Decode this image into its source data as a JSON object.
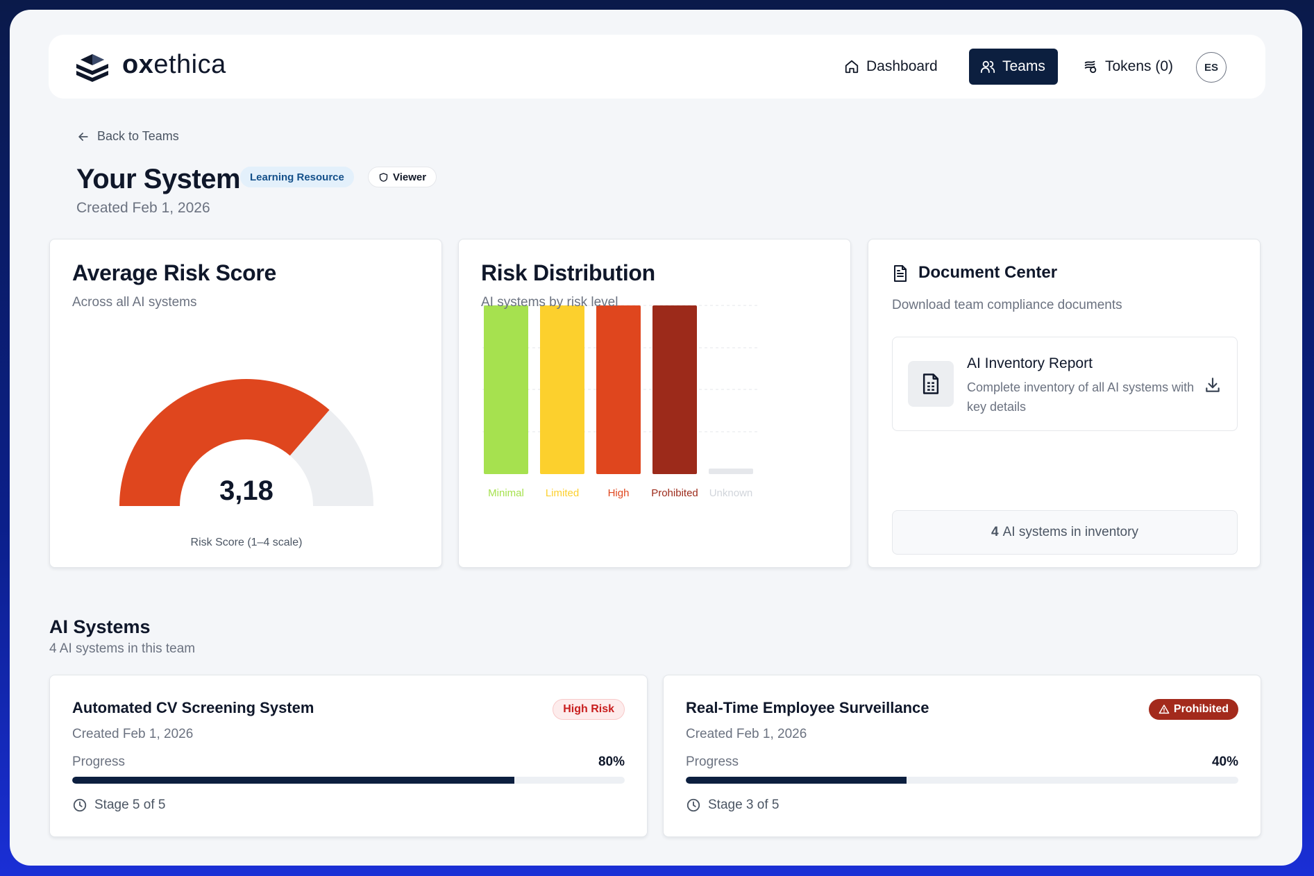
{
  "app": {
    "brand_bold": "ox",
    "brand_rest": "ethica",
    "nav": {
      "dashboard": "Dashboard",
      "teams": "Teams",
      "tokens": "Tokens (0)"
    },
    "avatar_initials": "ES"
  },
  "page": {
    "back_label": "Back to Teams",
    "title": "Your System",
    "badge_learning": "Learning Resource",
    "badge_viewer": "Viewer",
    "created": "Created Feb 1, 2026"
  },
  "risk_score": {
    "title": "Average Risk Score",
    "subtitle": "Across all AI systems",
    "value": "3,18",
    "label": "Risk Score (1–4 scale)",
    "min": 1,
    "max": 4,
    "score": 3.18,
    "fill_color": "#df461e",
    "track_color": "#eceef1"
  },
  "risk_distribution": {
    "title": "Risk Distribution",
    "subtitle": "AI systems by risk level",
    "chart_data": {
      "type": "bar",
      "categories": [
        "Minimal",
        "Limited",
        "High",
        "Prohibited",
        "Unknown"
      ],
      "values": [
        1,
        1,
        1,
        1,
        0
      ],
      "ylim": [
        0,
        1
      ],
      "colors": [
        "#a6e14f",
        "#fcd02d",
        "#df461e",
        "#9c2a1a",
        "#e5e7eb"
      ],
      "label_colors": [
        "#a6e14f",
        "#fcd02d",
        "#df461e",
        "#9c2a1a",
        "#d1d5db"
      ],
      "grid": true
    }
  },
  "documents": {
    "title": "Document Center",
    "subtitle": "Download team compliance documents",
    "item": {
      "name": "AI Inventory Report",
      "description": "Complete inventory of all AI systems with key details"
    },
    "inventory_count": "4",
    "inventory_text": "AI systems in inventory"
  },
  "systems": {
    "title": "AI Systems",
    "subtitle": "4 AI systems in this team",
    "progress_label": "Progress",
    "items": [
      {
        "name": "Automated CV Screening System",
        "created": "Created Feb 1, 2026",
        "badge": "High Risk",
        "progress": 0.8,
        "progress_text": "80%",
        "stage": "Stage 5 of 5"
      },
      {
        "name": "Real-Time Employee Surveillance",
        "created": "Created Feb 1, 2026",
        "badge": "Prohibited",
        "progress": 0.4,
        "progress_text": "40%",
        "stage": "Stage 3 of 5"
      }
    ]
  }
}
